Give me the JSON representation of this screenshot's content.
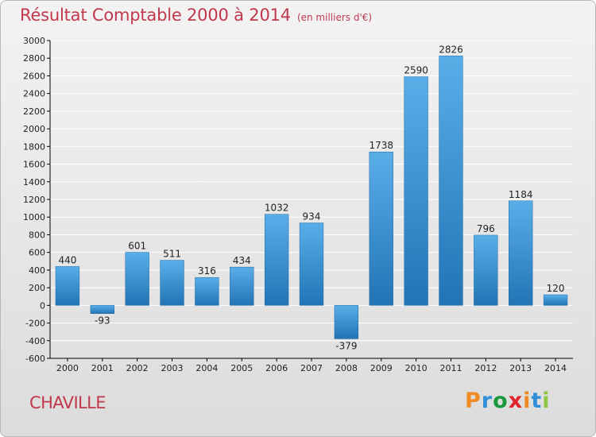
{
  "header": {
    "title": "Résultat Comptable 2000 à 2014",
    "subtitle": "(en milliers d'€)"
  },
  "footer": {
    "place": "CHAVILLE",
    "brand": "Proxiti",
    "brand_colors": [
      "#f08a24",
      "#2f8fd8",
      "#1a9a3c",
      "#e0262b",
      "#f08a24",
      "#2f8fd8",
      "#8dc63f"
    ]
  },
  "colors": {
    "accent": "#c0384b",
    "bar_light": "#5aaee8",
    "bar_dark": "#2274b5",
    "axis": "#000000",
    "grid": "#ffffff"
  },
  "chart_data": {
    "type": "bar",
    "title": "Résultat Comptable 2000 à 2014",
    "subtitle": "(en milliers d'€)",
    "categories": [
      "2000",
      "2001",
      "2002",
      "2003",
      "2004",
      "2005",
      "2006",
      "2007",
      "2008",
      "2009",
      "2010",
      "2011",
      "2012",
      "2013",
      "2014"
    ],
    "values": [
      440,
      -93,
      601,
      511,
      316,
      434,
      1032,
      934,
      -379,
      1738,
      2590,
      2826,
      796,
      1184,
      120
    ],
    "data_labels": [
      "440",
      "-93",
      "601",
      "511",
      "316",
      "434",
      "1032",
      "934",
      "-379",
      "1738",
      "2590",
      "2826",
      "796",
      "1184",
      "120"
    ],
    "y_ticks": [
      3000,
      2800,
      2600,
      2400,
      2200,
      2000,
      1800,
      1600,
      1400,
      1200,
      1000,
      800,
      600,
      400,
      200,
      0,
      -200,
      -400,
      -600
    ],
    "ylim": [
      -600,
      3000
    ],
    "xlabel": "",
    "ylabel": "",
    "grid": true,
    "legend": "none"
  }
}
